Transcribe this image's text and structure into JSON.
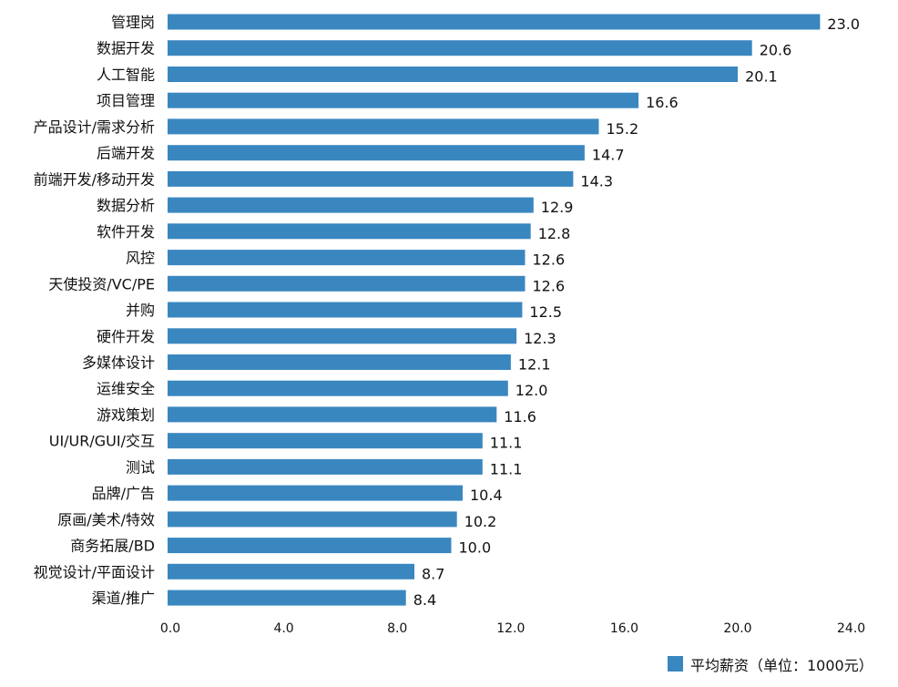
{
  "chart_data": {
    "type": "bar",
    "orientation": "horizontal",
    "title": "",
    "xlabel": "",
    "ylabel": "",
    "categories": [
      "管理岗",
      "数据开发",
      "人工智能",
      "项目管理",
      "产品设计/需求分析",
      "后端开发",
      "前端开发/移动开发",
      "数据分析",
      "软件开发",
      "风控",
      "天使投资/VC/PE",
      "并购",
      "硬件开发",
      "多媒体设计",
      "运维安全",
      "游戏策划",
      "UI/UR/GUI/交互",
      "测试",
      "品牌/广告",
      "原画/美术/特效",
      "商务拓展/BD",
      "视觉设计/平面设计",
      "渠道/推广"
    ],
    "series": [
      {
        "name": "平均薪资（单位：1000元）",
        "values": [
          23.0,
          20.6,
          20.1,
          16.6,
          15.2,
          14.7,
          14.3,
          12.9,
          12.8,
          12.6,
          12.6,
          12.5,
          12.3,
          12.1,
          12.0,
          11.6,
          11.1,
          11.1,
          10.4,
          10.2,
          10.0,
          8.7,
          8.4
        ],
        "value_labels": [
          "23.0",
          "20.6",
          "20.1",
          "16.6",
          "15.2",
          "14.7",
          "14.3",
          "12.9",
          "12.8",
          "12.6",
          "12.6",
          "12.5",
          "12.3",
          "12.1",
          "12.0",
          "11.6",
          "11.1",
          "11.1",
          "10.4",
          "10.2",
          "10.0",
          "8.7",
          "8.4"
        ],
        "color": "#3a87c0"
      }
    ],
    "xlim": [
      0,
      24
    ],
    "xticks": [
      0,
      4,
      8,
      12,
      16,
      20,
      24
    ],
    "xtick_labels": [
      "0.0",
      "4.0",
      "8.0",
      "12.0",
      "16.0",
      "20.0",
      "24.0"
    ],
    "grid": false,
    "legend": {
      "position": "bottom-right",
      "entries": [
        "平均薪资（单位：1000元）"
      ]
    }
  }
}
